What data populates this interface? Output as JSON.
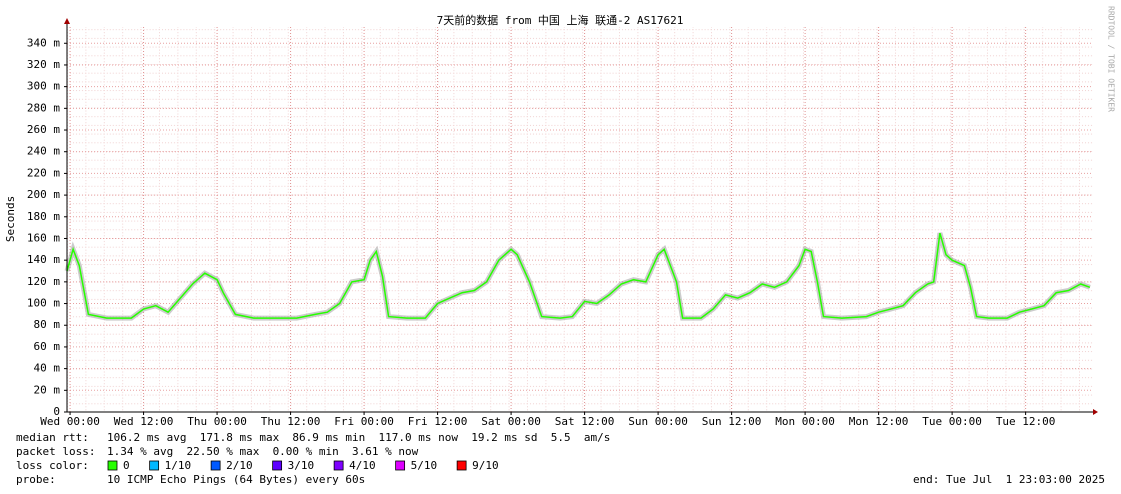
{
  "chart_data": {
    "type": "line",
    "title": "7天前的数据 from 中国 上海 联通-2 AS17621",
    "y_label": "Seconds",
    "side_text": "RRDTOOL / TOBI OETIKER",
    "x": [
      -0.5,
      0.5,
      1.5,
      3,
      6,
      10,
      12,
      14,
      16,
      18,
      20,
      22,
      24,
      25,
      27,
      30,
      34,
      37,
      40,
      42,
      44,
      46,
      48,
      49,
      50,
      51,
      52,
      55,
      58,
      60,
      62,
      64,
      66,
      68,
      70,
      72,
      73,
      75,
      77,
      80,
      82,
      84,
      86,
      88,
      90,
      92,
      94,
      96,
      97,
      99,
      100,
      103,
      105,
      107,
      109,
      111,
      113,
      115,
      117,
      119,
      120,
      121,
      122,
      123,
      126,
      130,
      132,
      134,
      136,
      138,
      140,
      141,
      142,
      143,
      144,
      146,
      147,
      148,
      150,
      153,
      155,
      157,
      159,
      161,
      163,
      165,
      166.5
    ],
    "series": [
      {
        "name": "median rtt",
        "color": "#26ff00",
        "values": [
          0.13,
          0.15,
          0.135,
          0.09,
          0.0866,
          0.0866,
          0.095,
          0.098,
          0.092,
          0.105,
          0.118,
          0.128,
          0.122,
          0.11,
          0.09,
          0.0866,
          0.0866,
          0.0866,
          0.09,
          0.092,
          0.1,
          0.12,
          0.122,
          0.14,
          0.148,
          0.125,
          0.088,
          0.0866,
          0.0866,
          0.1,
          0.105,
          0.11,
          0.112,
          0.12,
          0.14,
          0.15,
          0.145,
          0.12,
          0.088,
          0.0866,
          0.088,
          0.102,
          0.1,
          0.108,
          0.118,
          0.122,
          0.12,
          0.145,
          0.15,
          0.12,
          0.0866,
          0.0866,
          0.095,
          0.108,
          0.105,
          0.11,
          0.118,
          0.115,
          0.12,
          0.135,
          0.15,
          0.148,
          0.12,
          0.088,
          0.0866,
          0.088,
          0.092,
          0.095,
          0.098,
          0.11,
          0.118,
          0.12,
          0.165,
          0.145,
          0.14,
          0.135,
          0.115,
          0.088,
          0.0866,
          0.0866,
          0.092,
          0.095,
          0.098,
          0.11,
          0.112,
          0.118,
          0.115
        ]
      }
    ],
    "xlim": [
      -0.5,
      167
    ],
    "xticks": [
      {
        "value": 0,
        "label": "Wed 00:00"
      },
      {
        "value": 12,
        "label": "Wed 12:00"
      },
      {
        "value": 24,
        "label": "Thu 00:00"
      },
      {
        "value": 36,
        "label": "Thu 12:00"
      },
      {
        "value": 48,
        "label": "Fri 00:00"
      },
      {
        "value": 60,
        "label": "Fri 12:00"
      },
      {
        "value": 72,
        "label": "Sat 00:00"
      },
      {
        "value": 84,
        "label": "Sat 12:00"
      },
      {
        "value": 96,
        "label": "Sun 00:00"
      },
      {
        "value": 108,
        "label": "Sun 12:00"
      },
      {
        "value": 120,
        "label": "Mon 00:00"
      },
      {
        "value": 132,
        "label": "Mon 12:00"
      },
      {
        "value": 144,
        "label": "Tue 00:00"
      },
      {
        "value": 156,
        "label": "Tue 12:00"
      }
    ],
    "ylim": [
      0,
      0.355
    ],
    "yticks": [
      0,
      {
        "value": 0.02,
        "label": "20 m"
      },
      {
        "value": 0.04,
        "label": "40 m"
      },
      {
        "value": 0.06,
        "label": "60 m"
      },
      {
        "value": 0.08,
        "label": "80 m"
      },
      {
        "value": 0.1,
        "label": "100 m"
      },
      {
        "value": 0.12,
        "label": "120 m"
      },
      {
        "value": 0.14,
        "label": "140 m"
      },
      {
        "value": 0.16,
        "label": "160 m"
      },
      {
        "value": 0.18,
        "label": "180 m"
      },
      {
        "value": 0.2,
        "label": "200 m"
      },
      {
        "value": 0.22,
        "label": "220 m"
      },
      {
        "value": 0.24,
        "label": "240 m"
      },
      {
        "value": 0.26,
        "label": "260 m"
      },
      {
        "value": 0.28,
        "label": "280 m"
      },
      {
        "value": 0.3,
        "label": "300 m"
      },
      {
        "value": 0.32,
        "label": "320 m"
      },
      {
        "value": 0.34,
        "label": "340 m"
      }
    ],
    "grid": true,
    "stats": [
      {
        "label": "median rtt:",
        "text": "106.2 ms avg  171.8 ms max  86.9 ms min  117.0 ms now  19.2 ms sd  5.5  am/s"
      },
      {
        "label": "packet loss:",
        "text": "1.34 % avg  22.50 % max  0.00 % min  3.61 % now"
      }
    ],
    "loss_legend": {
      "label": "loss color:",
      "items": [
        {
          "name": "0",
          "color": "#26ff00"
        },
        {
          "name": "1/10",
          "color": "#00b8ff"
        },
        {
          "name": "2/10",
          "color": "#0059ff"
        },
        {
          "name": "3/10",
          "color": "#5e00ff"
        },
        {
          "name": "4/10",
          "color": "#7e00ff"
        },
        {
          "name": "5/10",
          "color": "#dd00ff"
        },
        {
          "name": "9/10",
          "color": "#ff0000"
        }
      ]
    },
    "probe": {
      "label": "probe:",
      "text": "10 ICMP Echo Pings (64 Bytes) every 60s"
    },
    "end": "end: Tue Jul  1 23:03:00 2025"
  }
}
